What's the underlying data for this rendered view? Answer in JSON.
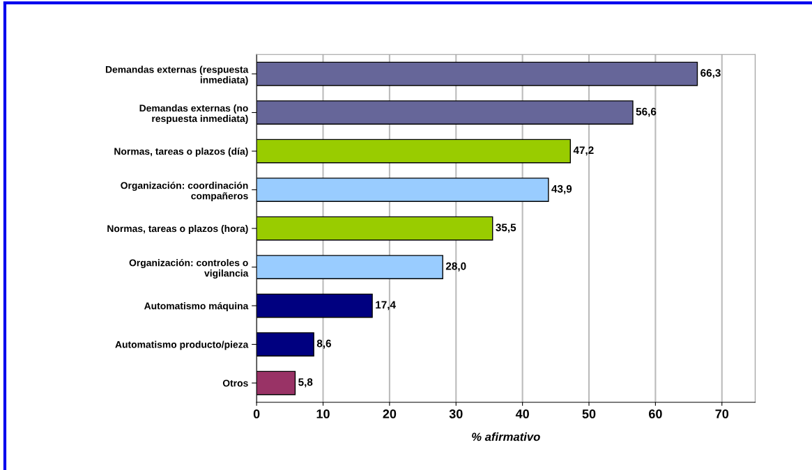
{
  "chart_data": {
    "type": "bar",
    "orientation": "horizontal",
    "xlabel": "% afirmativo",
    "categories": [
      "Demandas externas (respuesta\ninmediata)",
      "Demandas externas (no\nrespuesta inmediata)",
      "Normas, tareas o plazos (día)",
      "Organización: coordinación\ncompañeros",
      "Normas, tareas o plazos (hora)",
      "Organización: controles o\nvigilancia",
      "Automatismo máquina",
      "Automatismo producto/pieza",
      "Otros"
    ],
    "values": [
      66.3,
      56.6,
      47.2,
      43.9,
      35.5,
      28.0,
      17.4,
      8.6,
      5.8
    ],
    "colors": [
      "#666699",
      "#666699",
      "#99cc00",
      "#99ccff",
      "#99cc00",
      "#99ccff",
      "#000080",
      "#000080",
      "#993366"
    ],
    "value_labels": [
      "66,3",
      "56,6",
      "47,2",
      "43,9",
      "35,5",
      "28,0",
      "17,4",
      "8,6",
      "5,8"
    ],
    "xlim": [
      0,
      75
    ],
    "xticks": [
      0,
      10,
      20,
      30,
      40,
      50,
      60,
      70
    ],
    "grid": "x",
    "legend": false
  }
}
